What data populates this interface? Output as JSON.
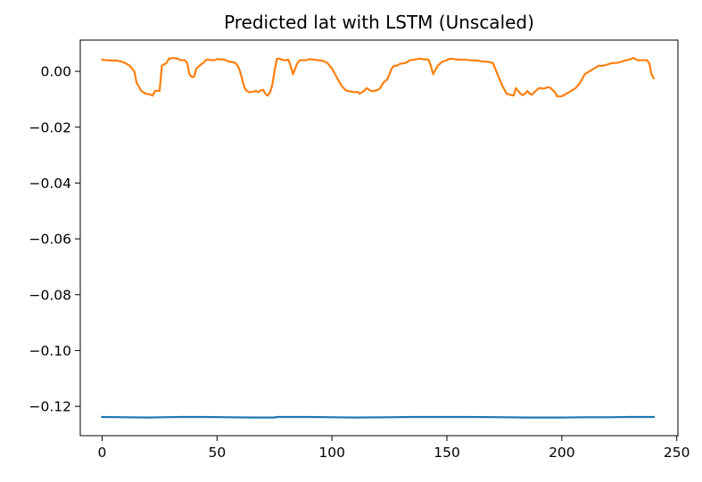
{
  "chart_data": {
    "type": "line",
    "title": "Predicted lat with LSTM (Unscaled)",
    "xlabel": "",
    "ylabel": "",
    "xlim": [
      -9.5,
      250.5
    ],
    "ylim": [
      -0.1305,
      0.0112
    ],
    "x_ticks": [
      0,
      50,
      100,
      150,
      200,
      250
    ],
    "x_tick_labels": [
      "0",
      "50",
      "100",
      "150",
      "200",
      "250"
    ],
    "y_ticks": [
      0.0,
      -0.02,
      -0.04,
      -0.06,
      -0.08,
      -0.1,
      -0.12
    ],
    "y_tick_labels": [
      "0.00",
      "−0.02",
      "−0.04",
      "−0.06",
      "−0.08",
      "−0.10",
      "−0.12"
    ],
    "grid": false,
    "legend": "none",
    "series": [
      {
        "color": "#1f77b4",
        "points": [
          [
            0,
            -0.1238
          ],
          [
            10,
            -0.1239
          ],
          [
            20,
            -0.124
          ],
          [
            26,
            -0.1239
          ],
          [
            35,
            -0.1238
          ],
          [
            45,
            -0.1238
          ],
          [
            55,
            -0.1239
          ],
          [
            65,
            -0.124
          ],
          [
            75,
            -0.124
          ],
          [
            76,
            -0.1238
          ],
          [
            90,
            -0.1238
          ],
          [
            100,
            -0.1239
          ],
          [
            110,
            -0.124
          ],
          [
            125,
            -0.1239
          ],
          [
            135,
            -0.1238
          ],
          [
            150,
            -0.1238
          ],
          [
            160,
            -0.1238
          ],
          [
            175,
            -0.1239
          ],
          [
            185,
            -0.124
          ],
          [
            200,
            -0.124
          ],
          [
            210,
            -0.1239
          ],
          [
            220,
            -0.1239
          ],
          [
            230,
            -0.1238
          ],
          [
            240,
            -0.1238
          ]
        ]
      },
      {
        "color": "#ff7f0e",
        "points": [
          [
            0,
            0.0042
          ],
          [
            2,
            0.004
          ],
          [
            4,
            0.0039
          ],
          [
            6,
            0.0039
          ],
          [
            8,
            0.0036
          ],
          [
            10,
            0.003
          ],
          [
            12,
            0.002
          ],
          [
            14,
            0.0
          ],
          [
            15,
            -0.004
          ],
          [
            17,
            -0.007
          ],
          [
            19,
            -0.008
          ],
          [
            21,
            -0.0083
          ],
          [
            22,
            -0.0087
          ],
          [
            23,
            -0.007
          ],
          [
            25,
            -0.007
          ],
          [
            26,
            0.002
          ],
          [
            28,
            0.003
          ],
          [
            29,
            0.0045
          ],
          [
            31,
            0.0048
          ],
          [
            33,
            0.0045
          ],
          [
            34,
            0.004
          ],
          [
            36,
            0.004
          ],
          [
            37,
            0.003
          ],
          [
            38,
            -0.001
          ],
          [
            39,
            -0.002
          ],
          [
            40,
            -0.002
          ],
          [
            41,
            0.001
          ],
          [
            43,
            0.0025
          ],
          [
            44,
            0.003
          ],
          [
            45,
            0.004
          ],
          [
            46,
            0.0042
          ],
          [
            48,
            0.004
          ],
          [
            49,
            0.004
          ],
          [
            50,
            0.0044
          ],
          [
            52,
            0.0043
          ],
          [
            54,
            0.004
          ],
          [
            55,
            0.0035
          ],
          [
            57,
            0.0033
          ],
          [
            58,
            0.003
          ],
          [
            59,
            0.002
          ],
          [
            60,
            0.0
          ],
          [
            61,
            -0.003
          ],
          [
            62,
            -0.006
          ],
          [
            63,
            -0.007
          ],
          [
            64,
            -0.0075
          ],
          [
            66,
            -0.0072
          ],
          [
            67,
            -0.007
          ],
          [
            68,
            -0.0075
          ],
          [
            69,
            -0.0068
          ],
          [
            70,
            -0.0066
          ],
          [
            71,
            -0.008
          ],
          [
            72,
            -0.0087
          ],
          [
            73,
            -0.0076
          ],
          [
            74,
            -0.005
          ],
          [
            75,
            0.0
          ],
          [
            76,
            0.0044
          ],
          [
            77,
            0.0046
          ],
          [
            79,
            0.004
          ],
          [
            80,
            0.004
          ],
          [
            81,
            0.0042
          ],
          [
            82,
            0.002
          ],
          [
            83,
            -0.001
          ],
          [
            84,
            0.001
          ],
          [
            85,
            0.003
          ],
          [
            86,
            0.004
          ],
          [
            88,
            0.004
          ],
          [
            89,
            0.004
          ],
          [
            90,
            0.0044
          ],
          [
            92,
            0.0042
          ],
          [
            94,
            0.004
          ],
          [
            96,
            0.0038
          ],
          [
            98,
            0.003
          ],
          [
            100,
            0.001
          ],
          [
            102,
            -0.002
          ],
          [
            104,
            -0.005
          ],
          [
            106,
            -0.0068
          ],
          [
            108,
            -0.0072
          ],
          [
            110,
            -0.0075
          ],
          [
            111,
            -0.0073
          ],
          [
            112,
            -0.008
          ],
          [
            114,
            -0.007
          ],
          [
            115,
            -0.006
          ],
          [
            116,
            -0.0065
          ],
          [
            117,
            -0.007
          ],
          [
            118,
            -0.0071
          ],
          [
            120,
            -0.0066
          ],
          [
            121,
            -0.006
          ],
          [
            122,
            -0.0045
          ],
          [
            123,
            -0.0035
          ],
          [
            124,
            -0.003
          ],
          [
            125,
            -0.001
          ],
          [
            126,
            0.001
          ],
          [
            127,
            0.002
          ],
          [
            128,
            0.002
          ],
          [
            130,
            0.0028
          ],
          [
            132,
            0.003
          ],
          [
            134,
            0.004
          ],
          [
            136,
            0.0042
          ],
          [
            138,
            0.0046
          ],
          [
            140,
            0.0043
          ],
          [
            142,
            0.0042
          ],
          [
            143,
            0.002
          ],
          [
            144,
            -0.001
          ],
          [
            145,
            0.0005
          ],
          [
            146,
            0.002
          ],
          [
            148,
            0.0035
          ],
          [
            150,
            0.004
          ],
          [
            151,
            0.0045
          ],
          [
            153,
            0.0044
          ],
          [
            155,
            0.0042
          ],
          [
            158,
            0.0042
          ],
          [
            160,
            0.004
          ],
          [
            163,
            0.0039
          ],
          [
            165,
            0.0036
          ],
          [
            168,
            0.0034
          ],
          [
            170,
            0.003
          ],
          [
            171,
            0.001
          ],
          [
            172,
            -0.001
          ],
          [
            174,
            -0.005
          ],
          [
            176,
            -0.008
          ],
          [
            178,
            -0.0085
          ],
          [
            179,
            -0.0087
          ],
          [
            180,
            -0.006
          ],
          [
            181,
            -0.007
          ],
          [
            182,
            -0.008
          ],
          [
            183,
            -0.0085
          ],
          [
            184,
            -0.008
          ],
          [
            185,
            -0.007
          ],
          [
            186,
            -0.008
          ],
          [
            187,
            -0.0084
          ],
          [
            188,
            -0.0075
          ],
          [
            190,
            -0.006
          ],
          [
            192,
            -0.0062
          ],
          [
            194,
            -0.0057
          ],
          [
            195,
            -0.0059
          ],
          [
            197,
            -0.0075
          ],
          [
            198,
            -0.009
          ],
          [
            200,
            -0.0089
          ],
          [
            202,
            -0.008
          ],
          [
            204,
            -0.007
          ],
          [
            206,
            -0.006
          ],
          [
            208,
            -0.004
          ],
          [
            210,
            -0.001
          ],
          [
            212,
            0.0
          ],
          [
            214,
            0.001
          ],
          [
            216,
            0.002
          ],
          [
            218,
            0.002
          ],
          [
            220,
            0.0025
          ],
          [
            222,
            0.003
          ],
          [
            224,
            0.003
          ],
          [
            226,
            0.0035
          ],
          [
            228,
            0.004
          ],
          [
            230,
            0.0044
          ],
          [
            231,
            0.0048
          ],
          [
            233,
            0.004
          ],
          [
            235,
            0.004
          ],
          [
            237,
            0.004
          ],
          [
            238,
            0.003
          ],
          [
            239,
            -0.001
          ],
          [
            240,
            -0.0025
          ]
        ]
      }
    ]
  }
}
